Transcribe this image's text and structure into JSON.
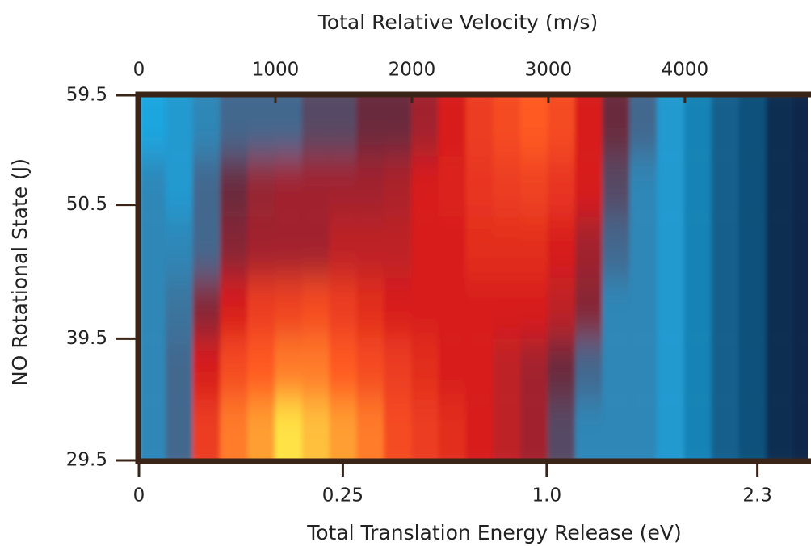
{
  "chart_data": {
    "type": "heatmap",
    "xlabel": "Total Relative Velocity  (m/s)",
    "x2label": "Total Translation Energy Release (eV)",
    "ylabel": "NO Rotational State (J)",
    "xlim": [
      0,
      4900
    ],
    "xticks": [
      0,
      1000,
      2000,
      3000,
      4000
    ],
    "x2lim": [
      0,
      2.69
    ],
    "x2scale": "sqrt",
    "x2ticks": [
      0,
      0.25,
      {
        "value": 1,
        "label": "1.0"
      },
      2.3
    ],
    "ylim": [
      29.5,
      59.5
    ],
    "yticks": [
      29.5,
      39.5,
      50.5,
      59.5
    ],
    "x": [
      100,
      300,
      500,
      700,
      900,
      1100,
      1300,
      1500,
      1700,
      1900,
      2100,
      2300,
      2500,
      2700,
      2900,
      3100,
      3300,
      3500,
      3700,
      3900,
      4100,
      4300,
      4500,
      4700,
      4900
    ],
    "y": [
      32,
      37,
      42,
      47,
      52,
      57
    ],
    "z": [
      [
        0.25,
        0.3,
        0.7,
        0.85,
        0.9,
        1.0,
        0.95,
        0.9,
        0.85,
        0.75,
        0.7,
        0.65,
        0.6,
        0.55,
        0.5,
        0.35,
        0.25,
        0.25,
        0.25,
        0.22,
        0.15,
        0.1,
        0.08,
        0.03,
        0.02
      ],
      [
        0.25,
        0.3,
        0.6,
        0.75,
        0.8,
        0.85,
        0.85,
        0.8,
        0.75,
        0.7,
        0.65,
        0.6,
        0.6,
        0.55,
        0.5,
        0.4,
        0.3,
        0.25,
        0.25,
        0.22,
        0.15,
        0.1,
        0.08,
        0.03,
        0.02
      ],
      [
        0.25,
        0.28,
        0.45,
        0.6,
        0.7,
        0.72,
        0.75,
        0.7,
        0.65,
        0.6,
        0.6,
        0.6,
        0.6,
        0.6,
        0.6,
        0.55,
        0.45,
        0.25,
        0.25,
        0.22,
        0.15,
        0.1,
        0.08,
        0.03,
        0.02
      ],
      [
        0.25,
        0.25,
        0.3,
        0.45,
        0.5,
        0.5,
        0.5,
        0.55,
        0.55,
        0.55,
        0.6,
        0.6,
        0.65,
        0.65,
        0.65,
        0.6,
        0.5,
        0.3,
        0.25,
        0.22,
        0.15,
        0.1,
        0.08,
        0.03,
        0.02
      ],
      [
        0.25,
        0.22,
        0.3,
        0.4,
        0.48,
        0.5,
        0.5,
        0.5,
        0.5,
        0.52,
        0.6,
        0.62,
        0.68,
        0.7,
        0.72,
        0.68,
        0.6,
        0.35,
        0.25,
        0.22,
        0.15,
        0.1,
        0.08,
        0.03,
        0.02
      ],
      [
        0.2,
        0.22,
        0.25,
        0.3,
        0.3,
        0.3,
        0.35,
        0.35,
        0.4,
        0.4,
        0.5,
        0.6,
        0.7,
        0.75,
        0.8,
        0.75,
        0.6,
        0.4,
        0.3,
        0.22,
        0.15,
        0.1,
        0.08,
        0.03,
        0.02
      ]
    ],
    "colorscale": [
      "#0b1838",
      "#1aa6e0",
      "#6a2a3c",
      "#d81e1e",
      "#ff5a22",
      "#ffe244"
    ],
    "frame_color": "#3a2418"
  }
}
